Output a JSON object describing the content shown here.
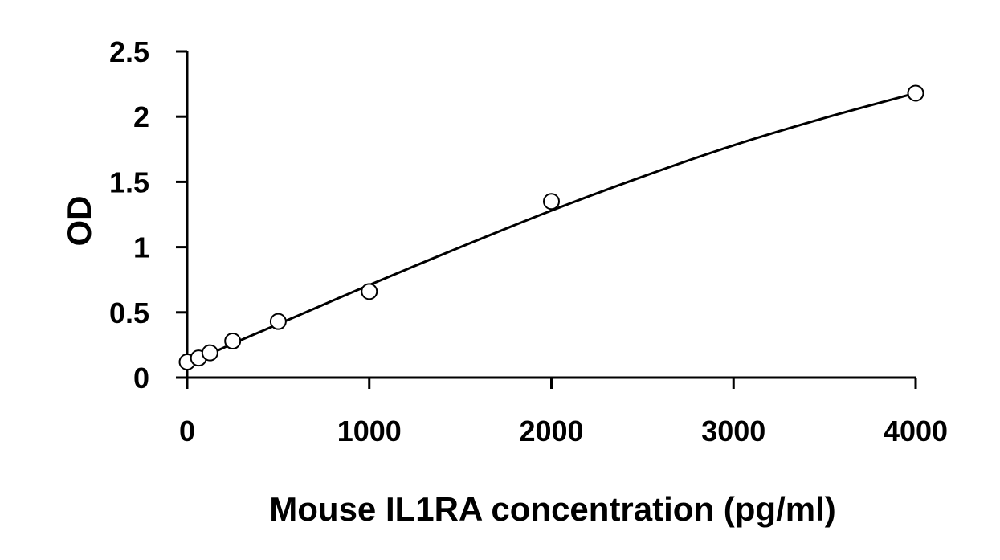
{
  "chart_data": {
    "type": "scatter",
    "title": "",
    "xlabel": "Mouse IL1RA concentration (pg/ml)",
    "ylabel": "OD",
    "xlim": [
      0,
      4000
    ],
    "ylim": [
      0,
      2.5
    ],
    "x_ticks": [
      0,
      1000,
      2000,
      3000,
      4000
    ],
    "x_tick_labels": [
      "0",
      "1000",
      "2000",
      "3000",
      "4000"
    ],
    "y_ticks": [
      0,
      0.5,
      1,
      1.5,
      2,
      2.5
    ],
    "y_tick_labels": [
      "0",
      "0.5",
      "1",
      "1.5",
      "2",
      "2.5"
    ],
    "grid": false,
    "legend": "none",
    "series": [
      {
        "marker": "open-circle",
        "x": [
          0,
          62.5,
          125,
          250,
          500,
          1000,
          2000,
          4000
        ],
        "values": [
          0.12,
          0.15,
          0.19,
          0.28,
          0.43,
          0.66,
          1.35,
          2.18
        ]
      }
    ],
    "fit_curve": {
      "type": "smooth curve",
      "x": [
        0,
        250,
        500,
        750,
        1000,
        1500,
        2000,
        2500,
        3000,
        3500,
        4000
      ],
      "values": [
        0.1,
        0.26,
        0.41,
        0.56,
        0.71,
        1.0,
        1.28,
        1.54,
        1.78,
        1.99,
        2.18
      ]
    },
    "colors": {
      "axis": "#000000",
      "marker_stroke": "#000000",
      "marker_fill": "#ffffff",
      "curve": "#000000"
    }
  }
}
